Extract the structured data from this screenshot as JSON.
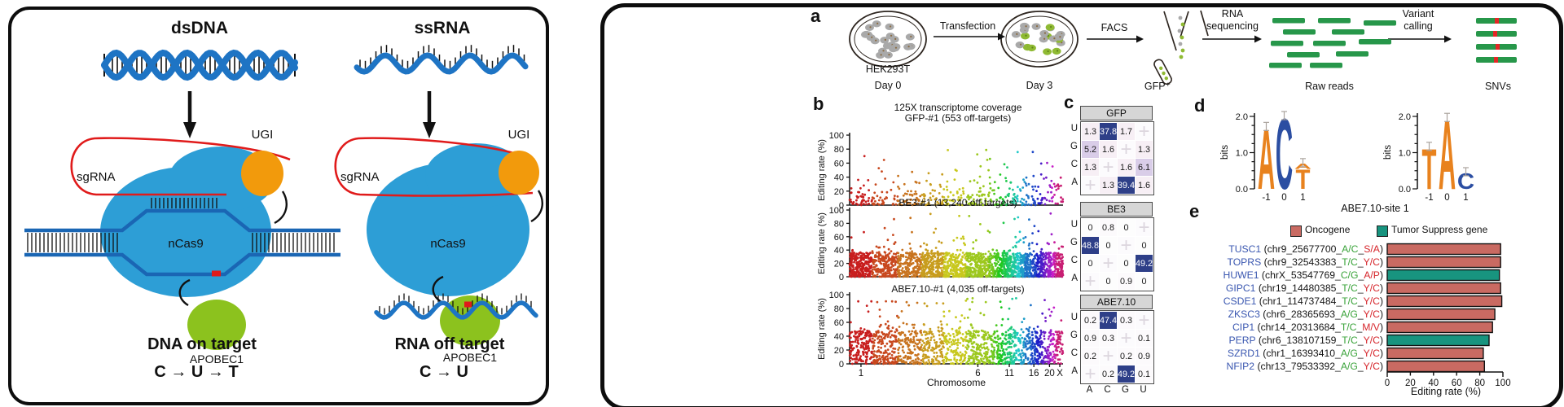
{
  "left_panel": {
    "dsdna_title": "dsDNA",
    "ssrna_title": "ssRNA",
    "dna_complex": {
      "sgrna": "sgRNA",
      "ugi": "UGI",
      "ncas9": "nCas9",
      "apobec1": "APOBEC1",
      "caption": "DNA on target",
      "conversion": "C → U → T"
    },
    "rna_complex": {
      "sgrna": "sgRNA",
      "ugi": "UGI",
      "ncas9": "nCas9",
      "apobec1": "APOBEC1",
      "caption": "RNA off target",
      "conversion": "C → U"
    }
  },
  "panel_a": {
    "label": "a",
    "hek293t": "HEK293T",
    "day0": "Day 0",
    "transfection": "Transfection",
    "day3": "Day 3",
    "facs": "FACS",
    "gfp_plus": "GFP⁺",
    "rna_seq_line1": "RNA",
    "rna_seq_line2": "sequencing",
    "raw_reads": "Raw reads",
    "variant_line1": "Variant",
    "variant_line2": "calling",
    "snvs": "SNVs"
  },
  "panel_b": {
    "label": "b",
    "ylabel": "Editing rate (%)",
    "xlabel": "Chromosome",
    "ytick_labels": [
      "100",
      "80",
      "60",
      "40",
      "20",
      "0"
    ],
    "xtick_labels": [
      "1",
      "6",
      "11",
      "16",
      "20",
      "X"
    ],
    "plots": [
      {
        "title_line1": "125X transcriptome coverage",
        "title_line2": "GFP-#1  (553 off-targets)"
      },
      {
        "title": "BE3-#1  (13,240 off-targets)"
      },
      {
        "title": "ABE7.10-#1  (4,035 off-targets)"
      }
    ]
  },
  "panel_c": {
    "label": "c",
    "row_labels": [
      "U",
      "G",
      "C",
      "A"
    ],
    "col_labels": [
      "A",
      "C",
      "G",
      "U"
    ]
  },
  "panel_d": {
    "label": "d",
    "ylabel": "bits",
    "ytick_labels": [
      "2.0",
      "1.0",
      "0.0"
    ],
    "xtick_labels": [
      "-1",
      "0",
      "1"
    ]
  },
  "panel_e": {
    "label": "e",
    "title": "ABE7.10-site 1",
    "legend": [
      {
        "label": "Oncogene",
        "color": "#C96A62",
        "class": "oncogene"
      },
      {
        "label": "Tumor Suppress gene",
        "color": "#18947F",
        "class": "tumor_suppressor"
      }
    ],
    "xlabel": "Editing rate (%)",
    "xtick_labels": [
      "0",
      "20",
      "40",
      "60",
      "80",
      "100"
    ]
  },
  "chart_data": [
    {
      "type": "scatter",
      "panel": "b1",
      "subtitle": "125X transcriptome coverage",
      "title": "GFP-#1 (553 off-targets)",
      "sample": "GFP-#1",
      "n_off_targets": 553,
      "xlabel": "Chromosome",
      "ylabel": "Editing rate (%)",
      "ylim": [
        0,
        100
      ],
      "xticks": [
        "1",
        "6",
        "11",
        "16",
        "20",
        "X"
      ],
      "y_max_observed": 82,
      "color_scheme": "rainbow-by-chromosome",
      "render": {
        "n": 430,
        "mode": "exp",
        "scale": 13,
        "cap": 82,
        "seed": 11
      }
    },
    {
      "type": "scatter",
      "panel": "b2",
      "title": "BE3-#1 (13,240 off-targets)",
      "sample": "BE3-#1",
      "n_off_targets": 13240,
      "ylim": [
        0,
        100
      ],
      "y_max_observed": 100,
      "render": {
        "n": 2300,
        "mode": "band",
        "bandMax": 36,
        "tailFrac": 0.1,
        "tailScale": 18,
        "cap": 100,
        "seed": 22
      }
    },
    {
      "type": "scatter",
      "panel": "b3",
      "title": "ABE7.10-#1 (4,035 off-targets)",
      "sample": "ABE7.10-#1",
      "n_off_targets": 4035,
      "ylim": [
        0,
        100
      ],
      "y_max_observed": 95,
      "render": {
        "n": 1600,
        "mode": "band",
        "bandMax": 48,
        "tailFrac": 0.15,
        "tailScale": 20,
        "cap": 95,
        "seed": 33
      }
    },
    {
      "type": "heatmap",
      "panel": "c1",
      "title": "GFP",
      "rows": [
        "U",
        "G",
        "C",
        "A"
      ],
      "cols": [
        "A",
        "C",
        "G",
        "U"
      ],
      "values": [
        [
          1.3,
          37.8,
          1.7,
          null
        ],
        [
          5.2,
          1.6,
          null,
          1.3
        ],
        [
          1.3,
          null,
          1.6,
          6.1
        ],
        [
          null,
          1.3,
          39.4,
          1.6
        ]
      ]
    },
    {
      "type": "heatmap",
      "panel": "c2",
      "title": "BE3",
      "rows": [
        "U",
        "G",
        "C",
        "A"
      ],
      "cols": [
        "A",
        "C",
        "G",
        "U"
      ],
      "values": [
        [
          0,
          0.8,
          0,
          null
        ],
        [
          48.8,
          0,
          null,
          0
        ],
        [
          0,
          null,
          0,
          49.2
        ],
        [
          null,
          0,
          0.9,
          0
        ]
      ]
    },
    {
      "type": "heatmap",
      "panel": "c3",
      "title": "ABE7.10",
      "rows": [
        "U",
        "G",
        "C",
        "A"
      ],
      "cols": [
        "A",
        "C",
        "G",
        "U"
      ],
      "values": [
        [
          0.2,
          47.4,
          0.3,
          null
        ],
        [
          0.9,
          0.3,
          null,
          0.1
        ],
        [
          0.2,
          null,
          0.2,
          0.9
        ],
        [
          null,
          0.2,
          49.2,
          0.1
        ]
      ]
    },
    {
      "type": "sequence_logo",
      "panel": "d1",
      "ylabel": "bits",
      "ylim": [
        0,
        2
      ],
      "positions": [
        "-1",
        "0",
        "1"
      ],
      "stacks": [
        [
          {
            "letter": "A",
            "bits": 1.7
          }
        ],
        [
          {
            "letter": "C",
            "bits": 2.0
          }
        ],
        [
          {
            "letter": "T",
            "bits": 0.55
          },
          {
            "letter": "A",
            "bits": 0.15
          }
        ]
      ]
    },
    {
      "type": "sequence_logo",
      "panel": "d2",
      "ylabel": "bits",
      "ylim": [
        0,
        2
      ],
      "positions": [
        "-1",
        "0",
        "1"
      ],
      "stacks": [
        [
          {
            "letter": "T",
            "bits": 1.15
          }
        ],
        [
          {
            "letter": "A",
            "bits": 1.95
          }
        ],
        [
          {
            "letter": "C",
            "bits": 0.45
          }
        ]
      ]
    },
    {
      "type": "bar",
      "panel": "e",
      "title": "ABE7.10-site 1",
      "xlabel": "Editing rate (%)",
      "xlim": [
        0,
        100
      ],
      "categories": [
        "TUSC1",
        "TOPRS",
        "HUWE1",
        "GIPC1",
        "CSDE1",
        "ZKSC3",
        "CIP1",
        "PERP",
        "SZRD1",
        "NFIP2"
      ],
      "values": [
        98,
        98,
        97,
        98,
        99,
        93,
        91,
        88,
        83,
        84
      ],
      "gene_classes": [
        "oncogene",
        "oncogene",
        "tumor_suppressor",
        "oncogene",
        "oncogene",
        "oncogene",
        "oncogene",
        "tumor_suppressor",
        "oncogene",
        "oncogene"
      ],
      "gene_details": [
        {
          "name": "TUSC1",
          "locus": "chr9_25677700",
          "nt_change": "A/C",
          "aa_change": "S/A"
        },
        {
          "name": "TOPRS",
          "locus": "chr9_32543383",
          "nt_change": "T/C",
          "aa_change": "Y/C"
        },
        {
          "name": "HUWE1",
          "locus": "chrX_53547769",
          "nt_change": "C/G",
          "aa_change": "A/P"
        },
        {
          "name": "GIPC1",
          "locus": "chr19_14480385",
          "nt_change": "T/C",
          "aa_change": "Y/C"
        },
        {
          "name": "CSDE1",
          "locus": "chr1_114737484",
          "nt_change": "T/C",
          "aa_change": "Y/C"
        },
        {
          "name": "ZKSC3",
          "locus": "chr6_28365693",
          "nt_change": "A/G",
          "aa_change": "Y/C"
        },
        {
          "name": "CIP1",
          "locus": "chr14_20313684",
          "nt_change": "T/C",
          "aa_change": "M/V"
        },
        {
          "name": "PERP",
          "locus": "chr6_138107159",
          "nt_change": "T/C",
          "aa_change": "Y/C"
        },
        {
          "name": "SZRD1",
          "locus": "chr1_16393410",
          "nt_change": "A/G",
          "aa_change": "Y/C"
        },
        {
          "name": "NFIP2",
          "locus": "chr13_79533392",
          "nt_change": "A/G",
          "aa_change": "Y/C"
        }
      ]
    }
  ]
}
